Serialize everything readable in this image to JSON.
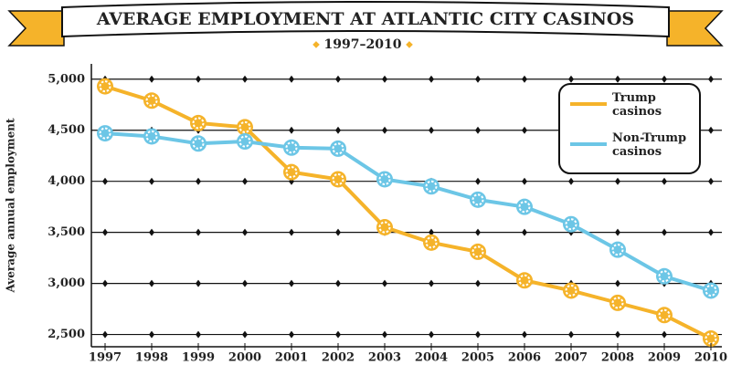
{
  "chart_data": {
    "type": "line",
    "title": "AVERAGE EMPLOYMENT AT ATLANTIC CITY CASINOS",
    "subtitle": "1997–2010",
    "y_label": "Average annual employment",
    "categories": [
      "1997",
      "1998",
      "1999",
      "2000",
      "2001",
      "2002",
      "2003",
      "2004",
      "2005",
      "2006",
      "2007",
      "2008",
      "2009",
      "2010"
    ],
    "series": [
      {
        "name": "Trump casinos",
        "color": "#f5b32a",
        "values": [
          4930,
          4790,
          4570,
          4530,
          4090,
          4020,
          3550,
          3400,
          3310,
          3030,
          2930,
          2810,
          2690,
          2460
        ]
      },
      {
        "name": "Non-Trump casinos",
        "color": "#6cc6e6",
        "values": [
          4470,
          4440,
          4370,
          4390,
          4330,
          4320,
          4020,
          3950,
          3820,
          3750,
          3580,
          3330,
          3070,
          2930
        ]
      }
    ],
    "ylim": [
      2380,
      5150
    ],
    "yticks": [
      {
        "value": 2500,
        "label": "2,500"
      },
      {
        "value": 3000,
        "label": "3,000"
      },
      {
        "value": 3500,
        "label": "3,500"
      },
      {
        "value": 4000,
        "label": "4,000"
      },
      {
        "value": 4500,
        "label": "4,500"
      },
      {
        "value": 5000,
        "label": "5,000"
      }
    ],
    "grid": true,
    "legend": "upper right"
  }
}
